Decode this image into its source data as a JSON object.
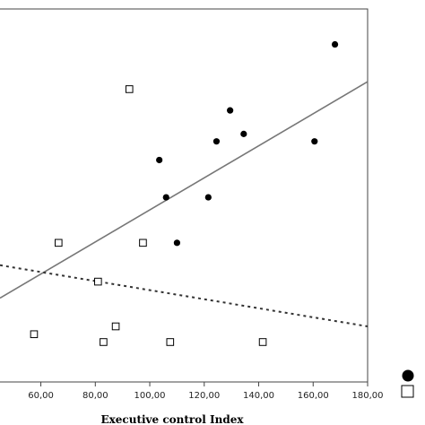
{
  "chart_data": {
    "type": "scatter",
    "title": "",
    "xlabel": "Executive control Index",
    "ylabel": "",
    "xlim": [
      45,
      180
    ],
    "ylim": [
      0,
      100
    ],
    "x_ticks": [
      60,
      80,
      100,
      120,
      140,
      160,
      180
    ],
    "x_tick_labels": [
      "60,00",
      "80,00",
      "100,00",
      "120,00",
      "140,00",
      "160,00",
      "180,00"
    ],
    "grid": false,
    "legend_position": "bottom-right",
    "series": [
      {
        "marker": "filled-circle",
        "color": "#000000",
        "points": [
          {
            "x": 103.5,
            "y": 59.5
          },
          {
            "x": 106.0,
            "y": 49.5
          },
          {
            "x": 110.0,
            "y": 37.3
          },
          {
            "x": 121.5,
            "y": 49.5
          },
          {
            "x": 124.5,
            "y": 64.5
          },
          {
            "x": 129.5,
            "y": 72.8
          },
          {
            "x": 134.5,
            "y": 66.5
          },
          {
            "x": 160.5,
            "y": 64.5
          },
          {
            "x": 168.0,
            "y": 90.5
          }
        ],
        "fit": {
          "style": "solid",
          "color": "#777777",
          "x": [
            45,
            180
          ],
          "y": [
            22.5,
            80.5
          ]
        }
      },
      {
        "marker": "open-square",
        "color": "#000000",
        "points": [
          {
            "x": 57.5,
            "y": 12.8
          },
          {
            "x": 66.5,
            "y": 37.3
          },
          {
            "x": 81.0,
            "y": 26.9
          },
          {
            "x": 83.0,
            "y": 10.7
          },
          {
            "x": 87.5,
            "y": 14.9
          },
          {
            "x": 92.5,
            "y": 78.5
          },
          {
            "x": 97.5,
            "y": 37.3
          },
          {
            "x": 107.5,
            "y": 10.7
          },
          {
            "x": 141.5,
            "y": 10.7
          }
        ],
        "fit": {
          "style": "dotted",
          "color": "#333333",
          "x": [
            45,
            180
          ],
          "y": [
            31.3,
            14.9
          ]
        }
      }
    ]
  }
}
